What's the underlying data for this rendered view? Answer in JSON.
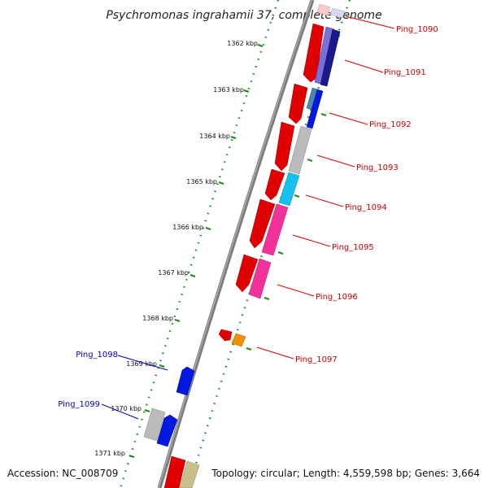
{
  "title": "Psychromonas ingrahamii 37, complete genome",
  "footer": {
    "accession": "Accession: NC_008709",
    "topology": "Topology: circular; Length: 4,559,598 bp; Genes: 3,664"
  },
  "ticks": [
    {
      "label": "1362 kbp"
    },
    {
      "label": "1363 kbp"
    },
    {
      "label": "1364 kbp"
    },
    {
      "label": "1365 kbp"
    },
    {
      "label": "1366 kbp"
    },
    {
      "label": "1367 kbp"
    },
    {
      "label": "1368 kbp"
    },
    {
      "label": "1369 kbp"
    },
    {
      "label": "1370 kbp"
    },
    {
      "label": "1371 kbp"
    }
  ],
  "gene_labels": {
    "ping_1090": "Ping_1090",
    "ping_1091": "Ping_1091",
    "ping_1092": "Ping_1092",
    "ping_1093": "Ping_1093",
    "ping_1094": "Ping_1094",
    "ping_1095": "Ping_1095",
    "ping_1096": "Ping_1096",
    "ping_1097": "Ping_1097",
    "ping_1098": "Ping_1098",
    "ping_1099": "Ping_1099"
  },
  "colors": {
    "forward_gene": "#e00000",
    "backbone": "#808080",
    "tick_mark": "#1a8a1a",
    "label_red": "#cc0000",
    "label_blue": "#0000bb"
  }
}
